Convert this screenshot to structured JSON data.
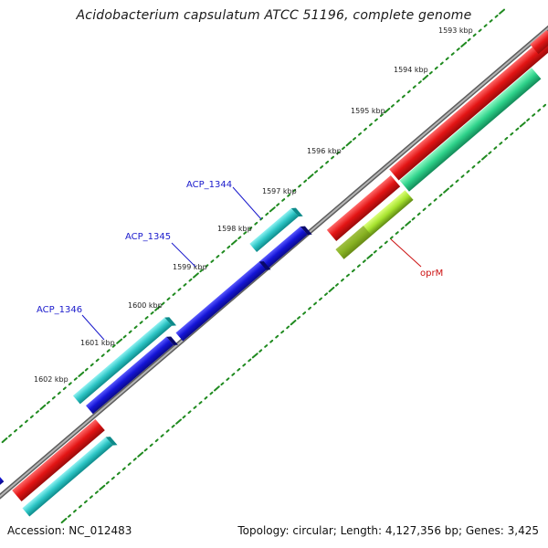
{
  "title": "Acidobacterium capsulatum ATCC 51196, complete genome",
  "footer": {
    "accession": "Accession: NC_012483",
    "summary": "Topology: circular; Length: 4,127,356 bp; Genes: 3,425"
  },
  "scale_labels": [
    "1593 kbp",
    "1594 kbp",
    "1595 kbp",
    "1596 kbp",
    "1597 kbp",
    "1598 kbp",
    "1599 kbp",
    "1600 kbp",
    "1601 kbp",
    "1602 kbp"
  ],
  "gene_labels": {
    "acp_1344": "ACP_1344",
    "acp_1345": "ACP_1345",
    "acp_1346": "ACP_1346",
    "oprm": "oprM"
  },
  "colors": {
    "backbone": "#8a8a8a",
    "outer_cyan": "#2ec6c6",
    "outer_blue": "#1a1ad6",
    "red": "#e31414",
    "green": "#2ed28a",
    "lime": "#a6e22e",
    "label_blue": "#1a1acc",
    "label_red": "#cc1111",
    "tick_green": "#1f8a1f"
  }
}
